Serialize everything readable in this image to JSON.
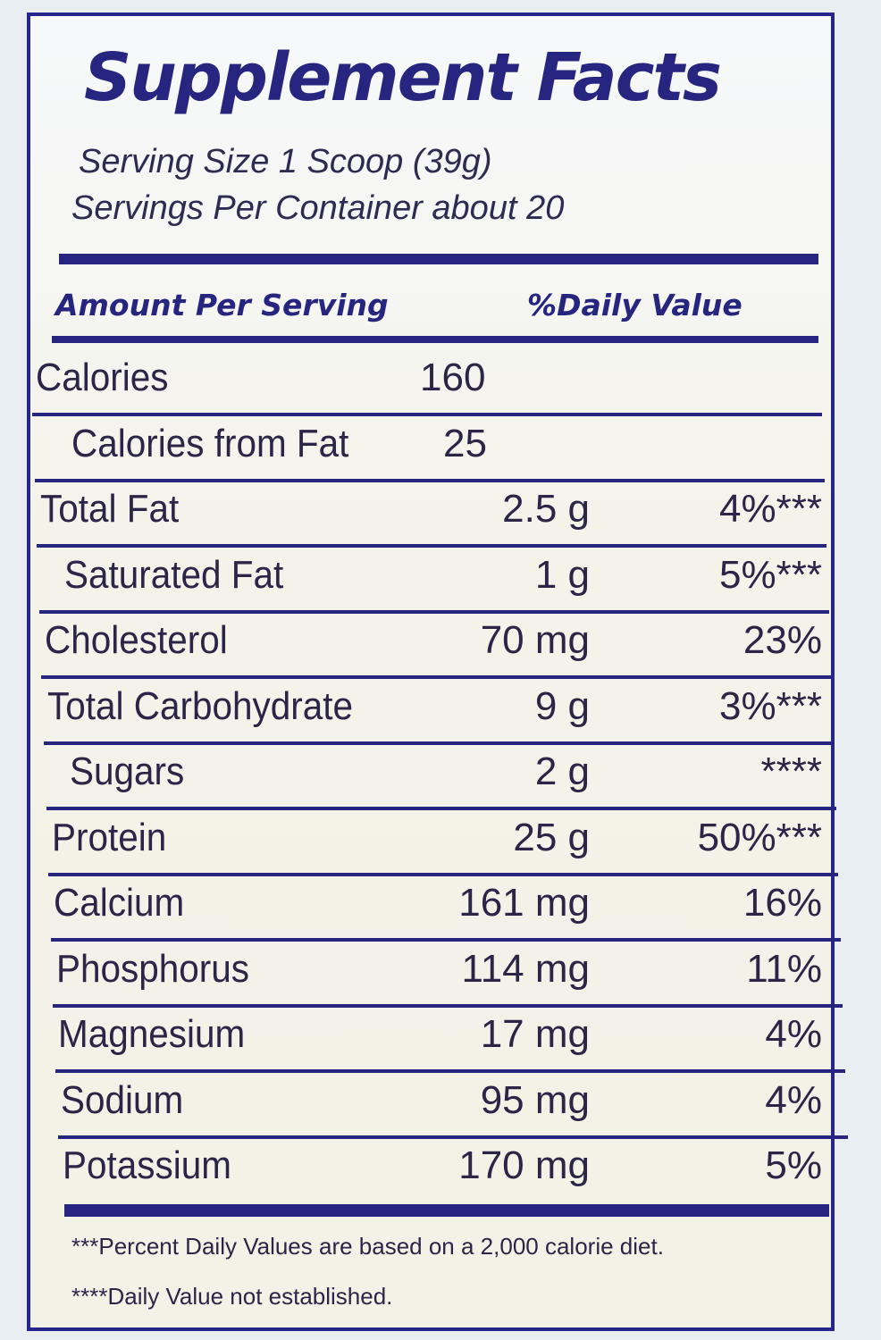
{
  "title": "Supplement Facts",
  "serving_size": "Serving Size 1 Scoop (39g)",
  "servings_per_container": "Servings Per Container about 20",
  "header": {
    "amount": "Amount Per Serving",
    "daily_value": "%Daily Value"
  },
  "rows": [
    {
      "name": "Calories",
      "amount": "160",
      "dv": ""
    },
    {
      "name": "Calories from Fat",
      "amount": "25",
      "dv": ""
    },
    {
      "name": "Total Fat",
      "amount": "2.5 g",
      "dv": "4%***"
    },
    {
      "name": "Saturated Fat",
      "amount": "1 g",
      "dv": "5%***"
    },
    {
      "name": "Cholesterol",
      "amount": "70 mg",
      "dv": "23%"
    },
    {
      "name": "Total Carbohydrate",
      "amount": "9 g",
      "dv": "3%***"
    },
    {
      "name": "Sugars",
      "amount": "2 g",
      "dv": "****"
    },
    {
      "name": "Protein",
      "amount": "25 g",
      "dv": "50%***"
    },
    {
      "name": "Calcium",
      "amount": "161 mg",
      "dv": "16%"
    },
    {
      "name": "Phosphorus",
      "amount": "114 mg",
      "dv": "11%"
    },
    {
      "name": "Magnesium",
      "amount": "17 mg",
      "dv": "4%"
    },
    {
      "name": "Sodium",
      "amount": "95 mg",
      "dv": "4%"
    },
    {
      "name": "Potassium",
      "amount": "170 mg",
      "dv": "5%"
    }
  ],
  "footnotes": [
    "***Percent Daily Values are based on a 2,000 calorie diet.",
    "****Daily Value not established."
  ],
  "colors": {
    "border": "#25258a",
    "text": "#2b2548"
  }
}
